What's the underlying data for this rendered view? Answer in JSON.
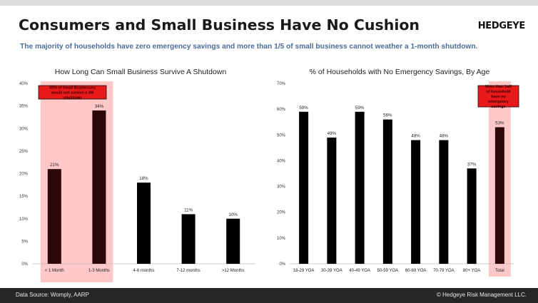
{
  "header": {
    "title": "Consumers and Small Business Have No Cushion",
    "logo": "HEDGEYE",
    "subtitle": "The majority of households have zero emergency savings and more than 1/5 of small business cannot weather a 1-month shutdown."
  },
  "footer": {
    "source": "Data Source: Womply, AARP",
    "copyright": "© Hedgeye Risk Management LLC."
  },
  "chart_data": [
    {
      "type": "bar",
      "title": "How Long Can Small Business Survive A Shutdown",
      "categories": [
        "< 1 Month",
        "1-3 Months",
        "4-6 months",
        "7-12 months",
        ">12 Months"
      ],
      "values": [
        21,
        34,
        18,
        11,
        10
      ],
      "value_labels": [
        "21%",
        "34%",
        "18%",
        "11%",
        "10%"
      ],
      "yticks": [
        "0%",
        "5%",
        "10%",
        "15%",
        "20%",
        "25%",
        "30%",
        "35%",
        "40%"
      ],
      "ylim": [
        0,
        40
      ],
      "highlighted_categories": [
        0,
        1
      ],
      "annotation": "55% of Small Businesses would not survive a 3M shutdown",
      "colors": {
        "bar": "#000000",
        "highlight_bar": "#2b0707",
        "highlight_band": "#ffc8c8",
        "annotation_box": "#e8191b"
      }
    },
    {
      "type": "bar",
      "title": "% of Households with No Emergency Savings, By Age",
      "categories": [
        "18-29 YOA",
        "30-39 YOA",
        "40-49 YOA",
        "50-59 YOA",
        "60-69 YOA",
        "70-79 YOA",
        "80+ YOA",
        "Total"
      ],
      "values": [
        59,
        49,
        59,
        56,
        48,
        48,
        37,
        53
      ],
      "value_labels": [
        "59%",
        "49%",
        "59%",
        "56%",
        "48%",
        "48%",
        "37%",
        "53%"
      ],
      "yticks": [
        "0%",
        "10%",
        "20%",
        "30%",
        "40%",
        "50%",
        "60%",
        "70%"
      ],
      "ylim": [
        0,
        70
      ],
      "highlighted_categories": [
        7
      ],
      "annotation": "More than half of household have no emergency savings",
      "colors": {
        "bar": "#000000",
        "highlight_bar": "#2b0707",
        "highlight_band": "#ffc8c8",
        "annotation_box": "#e8191b"
      }
    }
  ]
}
